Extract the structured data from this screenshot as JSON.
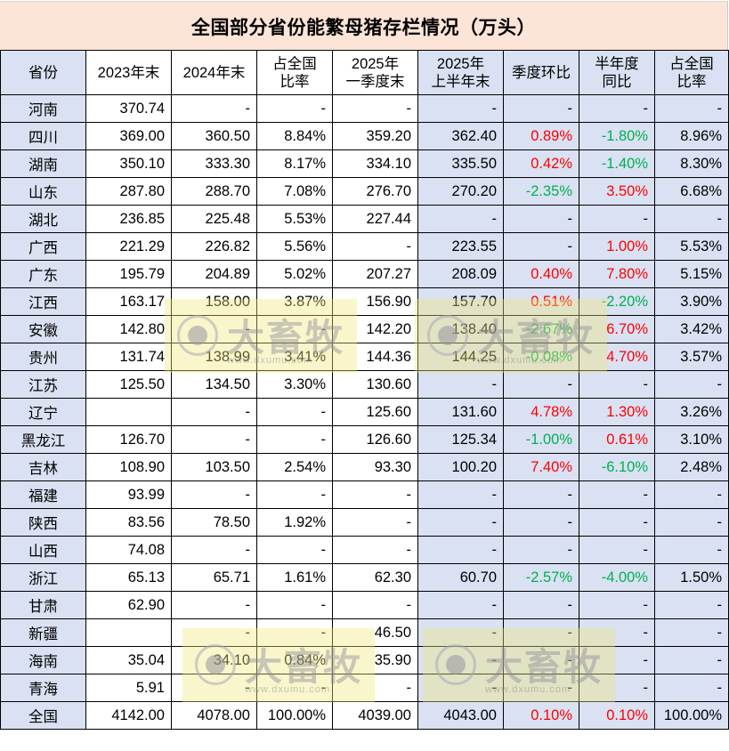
{
  "title": "全国部分省份能繁母猪存栏情况（万头）",
  "colors": {
    "title_bg": "#fce4d6",
    "header_blue": "#d9e1f2",
    "increase_red": "#ff0000",
    "decrease_green": "#00b050"
  },
  "headers": {
    "province": "省份",
    "end_2023": "2023年末",
    "end_2024": "2024年末",
    "share_1_l1": "占全国",
    "share_1_l2": "比率",
    "q1_2025_l1": "2025年",
    "q1_2025_l2": "一季度末",
    "h1_2025_l1": "2025年",
    "h1_2025_l2": "上半年末",
    "qoq": "季度环比",
    "yoy_l1": "半年度",
    "yoy_l2": "同比",
    "share_2_l1": "占全国",
    "share_2_l2": "比率"
  },
  "rows": [
    {
      "province": "河南",
      "end_2023": "370.74",
      "end_2024": "-",
      "share_2024": "-",
      "q1_2025": "-",
      "h1_2025": "-",
      "qoq": "-",
      "yoy": "-",
      "share_h1": "-"
    },
    {
      "province": "四川",
      "end_2023": "369.00",
      "end_2024": "360.50",
      "share_2024": "8.84%",
      "q1_2025": "359.20",
      "h1_2025": "362.40",
      "qoq": "0.89%",
      "yoy": "-1.80%",
      "share_h1": "8.96%"
    },
    {
      "province": "湖南",
      "end_2023": "350.10",
      "end_2024": "333.30",
      "share_2024": "8.17%",
      "q1_2025": "334.10",
      "h1_2025": "335.50",
      "qoq": "0.42%",
      "yoy": "-1.40%",
      "share_h1": "8.30%"
    },
    {
      "province": "山东",
      "end_2023": "287.80",
      "end_2024": "288.70",
      "share_2024": "7.08%",
      "q1_2025": "276.70",
      "h1_2025": "270.20",
      "qoq": "-2.35%",
      "yoy": "3.50%",
      "share_h1": "6.68%"
    },
    {
      "province": "湖北",
      "end_2023": "236.85",
      "end_2024": "225.48",
      "share_2024": "5.53%",
      "q1_2025": "227.44",
      "h1_2025": "-",
      "qoq": "-",
      "yoy": "-",
      "share_h1": "-"
    },
    {
      "province": "广西",
      "end_2023": "221.29",
      "end_2024": "226.82",
      "share_2024": "5.56%",
      "q1_2025": "-",
      "h1_2025": "223.55",
      "qoq": "-",
      "yoy": "1.00%",
      "share_h1": "5.53%"
    },
    {
      "province": "广东",
      "end_2023": "195.79",
      "end_2024": "204.89",
      "share_2024": "5.02%",
      "q1_2025": "207.27",
      "h1_2025": "208.09",
      "qoq": "0.40%",
      "yoy": "7.80%",
      "share_h1": "5.15%"
    },
    {
      "province": "江西",
      "end_2023": "163.17",
      "end_2024": "158.00",
      "share_2024": "3.87%",
      "q1_2025": "156.90",
      "h1_2025": "157.70",
      "qoq": "0.51%",
      "yoy": "-2.20%",
      "share_h1": "3.90%"
    },
    {
      "province": "安徽",
      "end_2023": "142.80",
      "end_2024": "-",
      "share_2024": "-",
      "q1_2025": "142.20",
      "h1_2025": "138.40",
      "qoq": "-2.67%",
      "yoy": "6.70%",
      "share_h1": "3.42%"
    },
    {
      "province": "贵州",
      "end_2023": "131.74",
      "end_2024": "138.99",
      "share_2024": "3.41%",
      "q1_2025": "144.36",
      "h1_2025": "144.25",
      "qoq": "-0.08%",
      "yoy": "4.70%",
      "share_h1": "3.57%"
    },
    {
      "province": "江苏",
      "end_2023": "125.50",
      "end_2024": "134.50",
      "share_2024": "3.30%",
      "q1_2025": "130.60",
      "h1_2025": "-",
      "qoq": "-",
      "yoy": "-",
      "share_h1": "-"
    },
    {
      "province": "辽宁",
      "end_2023": "",
      "end_2024": "-",
      "share_2024": "-",
      "q1_2025": "125.60",
      "h1_2025": "131.60",
      "qoq": "4.78%",
      "yoy": "1.30%",
      "share_h1": "3.26%"
    },
    {
      "province": "黑龙江",
      "end_2023": "126.70",
      "end_2024": "-",
      "share_2024": "-",
      "q1_2025": "126.60",
      "h1_2025": "125.34",
      "qoq": "-1.00%",
      "yoy": "0.61%",
      "share_h1": "3.10%"
    },
    {
      "province": "吉林",
      "end_2023": "108.90",
      "end_2024": "103.50",
      "share_2024": "2.54%",
      "q1_2025": "93.30",
      "h1_2025": "100.20",
      "qoq": "7.40%",
      "yoy": "-6.10%",
      "share_h1": "2.48%"
    },
    {
      "province": "福建",
      "end_2023": "93.99",
      "end_2024": "-",
      "share_2024": "-",
      "q1_2025": "-",
      "h1_2025": "-",
      "qoq": "-",
      "yoy": "-",
      "share_h1": "-"
    },
    {
      "province": "陕西",
      "end_2023": "83.56",
      "end_2024": "78.50",
      "share_2024": "1.92%",
      "q1_2025": "-",
      "h1_2025": "-",
      "qoq": "-",
      "yoy": "-",
      "share_h1": "-"
    },
    {
      "province": "山西",
      "end_2023": "74.08",
      "end_2024": "-",
      "share_2024": "-",
      "q1_2025": "-",
      "h1_2025": "-",
      "qoq": "-",
      "yoy": "-",
      "share_h1": "-"
    },
    {
      "province": "浙江",
      "end_2023": "65.13",
      "end_2024": "65.71",
      "share_2024": "1.61%",
      "q1_2025": "62.30",
      "h1_2025": "60.70",
      "qoq": "-2.57%",
      "yoy": "-4.00%",
      "share_h1": "1.50%"
    },
    {
      "province": "甘肃",
      "end_2023": "62.90",
      "end_2024": "-",
      "share_2024": "-",
      "q1_2025": "-",
      "h1_2025": "-",
      "qoq": "-",
      "yoy": "-",
      "share_h1": "-"
    },
    {
      "province": "新疆",
      "end_2023": "",
      "end_2024": "-",
      "share_2024": "-",
      "q1_2025": "46.50",
      "h1_2025": "-",
      "qoq": "-",
      "yoy": "-",
      "share_h1": "-"
    },
    {
      "province": "海南",
      "end_2023": "35.04",
      "end_2024": "34.10",
      "share_2024": "0.84%",
      "q1_2025": "35.90",
      "h1_2025": "-",
      "qoq": "-",
      "yoy": "-",
      "share_h1": "-"
    },
    {
      "province": "青海",
      "end_2023": "5.91",
      "end_2024": "-",
      "share_2024": "-",
      "q1_2025": "-",
      "h1_2025": "-",
      "qoq": "-",
      "yoy": "-",
      "share_h1": "-"
    },
    {
      "province": "全国",
      "end_2023": "4142.00",
      "end_2024": "4078.00",
      "share_2024": "100.00%",
      "q1_2025": "4039.00",
      "h1_2025": "4043.00",
      "qoq": "0.10%",
      "yoy": "0.10%",
      "share_h1": "100.00%"
    }
  ],
  "watermark": {
    "brand": "大畜牧",
    "url": "www.dxumu.com"
  }
}
